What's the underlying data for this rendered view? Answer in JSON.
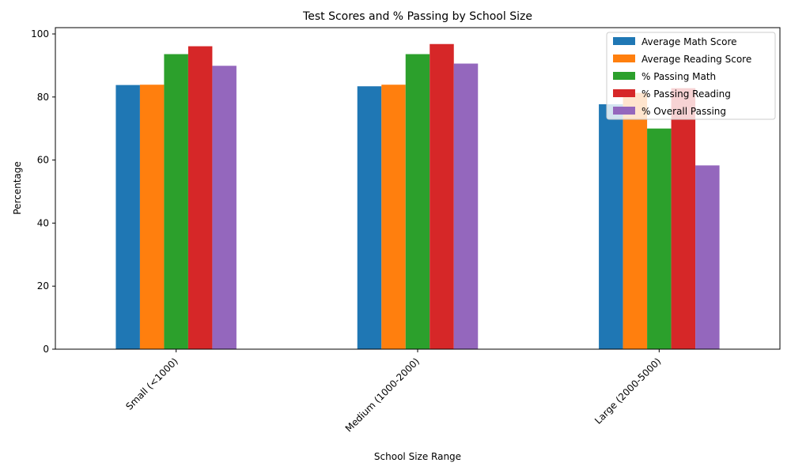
{
  "chart_data": {
    "type": "bar",
    "title": "Test Scores and % Passing by School Size",
    "xlabel": "School Size Range",
    "ylabel": "Percentage",
    "categories": [
      "Small (<1000)",
      "Medium (1000-2000)",
      "Large (2000-5000)"
    ],
    "ylim": [
      0,
      102
    ],
    "yticks": [
      0,
      20,
      40,
      60,
      80,
      100
    ],
    "grid": false,
    "legend_position": "top-right",
    "series": [
      {
        "name": "Average Math Score",
        "color": "#1f77b4",
        "values": [
          83.8,
          83.4,
          77.7
        ]
      },
      {
        "name": "Average Reading Score",
        "color": "#ff7f0e",
        "values": [
          83.9,
          83.9,
          81.3
        ]
      },
      {
        "name": "% Passing Math",
        "color": "#2ca02c",
        "values": [
          93.6,
          93.6,
          70.0
        ]
      },
      {
        "name": "% Passing Reading",
        "color": "#d62728",
        "values": [
          96.1,
          96.8,
          82.8
        ]
      },
      {
        "name": "% Overall Passing",
        "color": "#9467bd",
        "values": [
          89.9,
          90.6,
          58.3
        ]
      }
    ]
  }
}
